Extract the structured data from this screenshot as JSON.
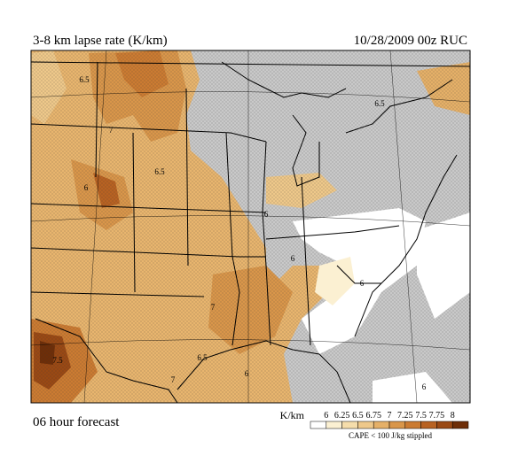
{
  "header": {
    "title": "3-8 km lapse rate (K/km)",
    "timestamp": "10/28/2009  00z  RUC"
  },
  "footer": {
    "forecast": "06 hour forecast",
    "units": "K/km",
    "note": "CAPE < 100 J/kg stippled"
  },
  "colorbar": {
    "labels": [
      "6",
      "6.25",
      "6.5",
      "6.75",
      "7",
      "7.25",
      "7.5",
      "7.75",
      "8"
    ],
    "colors": [
      "#ffffff",
      "#fbf0d2",
      "#f5ddab",
      "#eec88a",
      "#e5b068",
      "#d9964a",
      "#cb7b32",
      "#b86222",
      "#9a4914",
      "#6e2e08"
    ]
  },
  "contour_labels": [
    "6.5",
    "7",
    "6",
    "6.5",
    "6.5",
    "6",
    "6",
    "6",
    "7",
    "7.5",
    "6.5",
    "7",
    "6",
    "6"
  ]
}
